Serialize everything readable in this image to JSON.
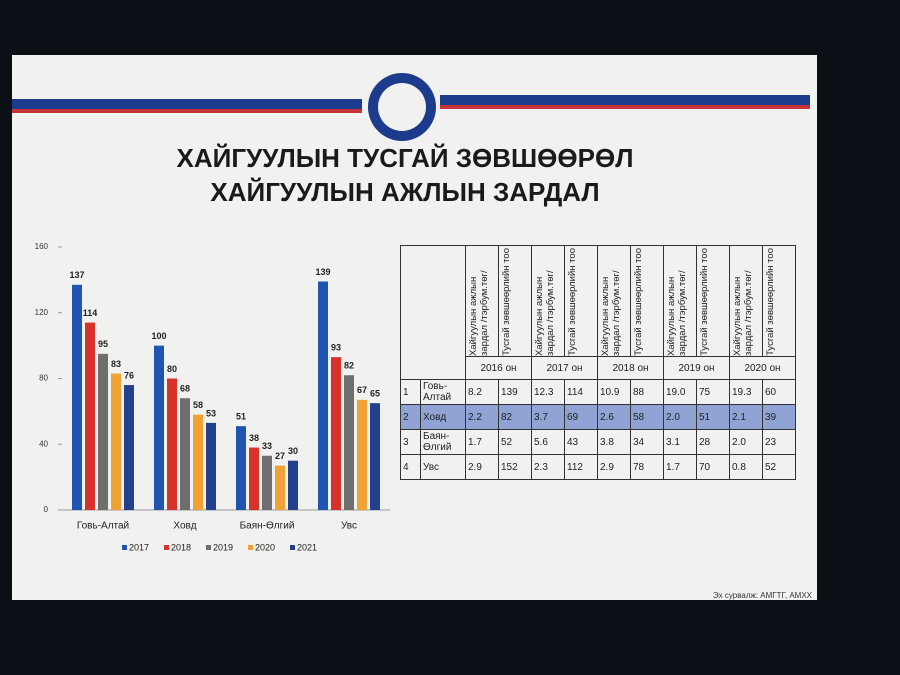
{
  "title_lines": [
    "ХАЙГУУЛЫН ТУСГАЙ ЗӨВШӨӨРӨЛ",
    "ХАЙГУУЛЫН АЖЛЫН ЗАРДАЛ"
  ],
  "source": "Эх сурвалж: АМГТГ, АМХХ",
  "chart_data": {
    "type": "bar",
    "categories": [
      "Говь-Алтай",
      "Ховд",
      "Баян-Өлгий",
      "Увс"
    ],
    "series": [
      {
        "name": "2017",
        "color": "#1f55b0",
        "values": [
          137,
          100,
          51,
          139
        ]
      },
      {
        "name": "2018",
        "color": "#d8322b",
        "values": [
          114,
          80,
          38,
          93
        ]
      },
      {
        "name": "2019",
        "color": "#6e6e6e",
        "values": [
          95,
          68,
          33,
          82
        ]
      },
      {
        "name": "2020",
        "color": "#f0a234",
        "values": [
          83,
          58,
          27,
          67
        ]
      },
      {
        "name": "2021",
        "color": "#22408e",
        "values": [
          76,
          53,
          30,
          65
        ]
      }
    ],
    "ylim": [
      0,
      160
    ],
    "yticks": [
      0,
      40,
      80,
      120,
      160
    ],
    "grid": false,
    "legend": "bottom"
  },
  "table": {
    "headers": [
      "Хайгуулын ажлын зардал /тэрбум.төг/",
      "Тусгай зөвшөөрлийн тоо",
      "Хайгуулын ажлын зардал /тэрбум.төг/",
      "Тусгай зөвшөөрлийн тоо",
      "Хайгуулын ажлын зардал /тэрбум.төг/",
      "Тусгай зөвшөөрлийн тоо",
      "Хайгуулын ажлын зардал /тэрбум.төг/",
      "Тусгай зөвшөөрлийн тоо",
      "Хайгуулын ажлын зардал /тэрбум.төг/",
      "Тусгай зөвшөөрлийн тоо"
    ],
    "years": [
      "2016 он",
      "2017 он",
      "2018 он",
      "2019 он",
      "2020 он"
    ],
    "rows": [
      [
        "1",
        "Говь-Алтай",
        "8.2",
        "139",
        "12.3",
        "114",
        "10.9",
        "88",
        "19.0",
        "75",
        "19.3",
        "60"
      ],
      [
        "2",
        "Ховд",
        "2.2",
        "82",
        "3.7",
        "69",
        "2.6",
        "58",
        "2.0",
        "51",
        "2.1",
        "39"
      ],
      [
        "3",
        "Баян-Өлгий",
        "1.7",
        "52",
        "5.6",
        "43",
        "3.8",
        "34",
        "3.1",
        "28",
        "2.0",
        "23"
      ],
      [
        "4",
        "Увс",
        "2.9",
        "152",
        "2.3",
        "112",
        "2.9",
        "78",
        "1.7",
        "70",
        "0.8",
        "52"
      ]
    ]
  }
}
